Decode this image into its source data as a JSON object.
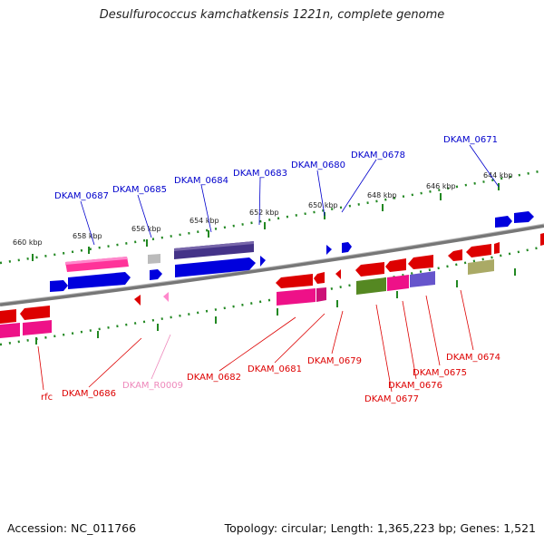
{
  "title": "Desulfurococcus kamchatkensis 1221n, complete genome",
  "footer": {
    "accession": "Accession: NC_011766",
    "summary": "Topology: circular; Length: 1,365,223 bp; Genes: 1,521"
  },
  "colors": {
    "forward": "#0000dd",
    "reverse": "#dd0000",
    "rna": "#ee88bb",
    "ruler": "#228822",
    "backbone": "#777777"
  },
  "ticks": [
    "660 kbp",
    "658 kbp",
    "656 kbp",
    "654 kbp",
    "652 kbp",
    "650 kbp",
    "648 kbp",
    "646 kbp",
    "644 kbp"
  ],
  "labels_top": [
    "DKAM_0687",
    "DKAM_0685",
    "DKAM_0684",
    "DKAM_0683",
    "DKAM_0680",
    "DKAM_0678",
    "DKAM_0671"
  ],
  "labels_bottom": [
    "rfc",
    "DKAM_0686",
    "DKAM_R0009",
    "DKAM_0682",
    "DKAM_0681",
    "DKAM_0679",
    "DKAM_0677",
    "DKAM_0676",
    "DKAM_0675",
    "DKAM_0674"
  ]
}
